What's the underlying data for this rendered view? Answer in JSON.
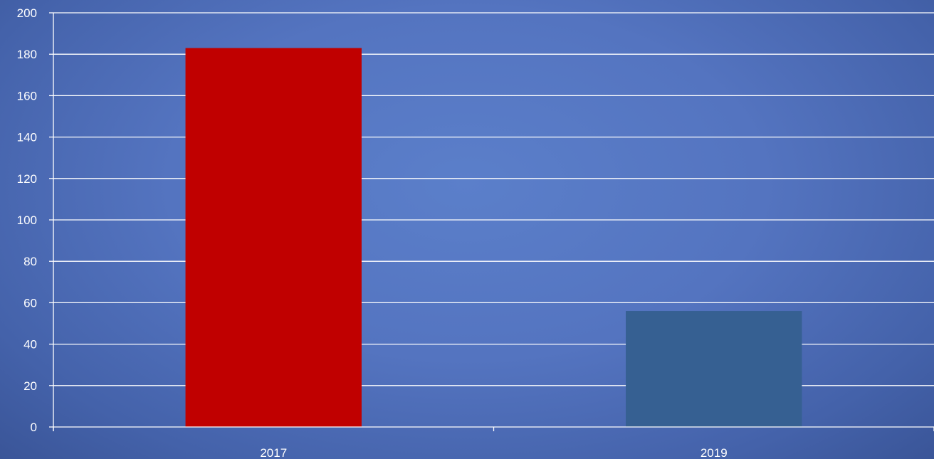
{
  "chart_data": {
    "type": "bar",
    "title": "",
    "xlabel": "",
    "ylabel": "",
    "categories": [
      "2017",
      "2019"
    ],
    "values": [
      183,
      56
    ],
    "bar_colors": [
      "#c00000",
      "#366092"
    ],
    "ylim": [
      0,
      200
    ],
    "y_ticks": [
      0,
      20,
      40,
      60,
      80,
      100,
      120,
      140,
      160,
      180,
      200
    ],
    "grid": true,
    "legend": "none",
    "background_color": "#5474c0",
    "text_color": "#ffffff"
  }
}
